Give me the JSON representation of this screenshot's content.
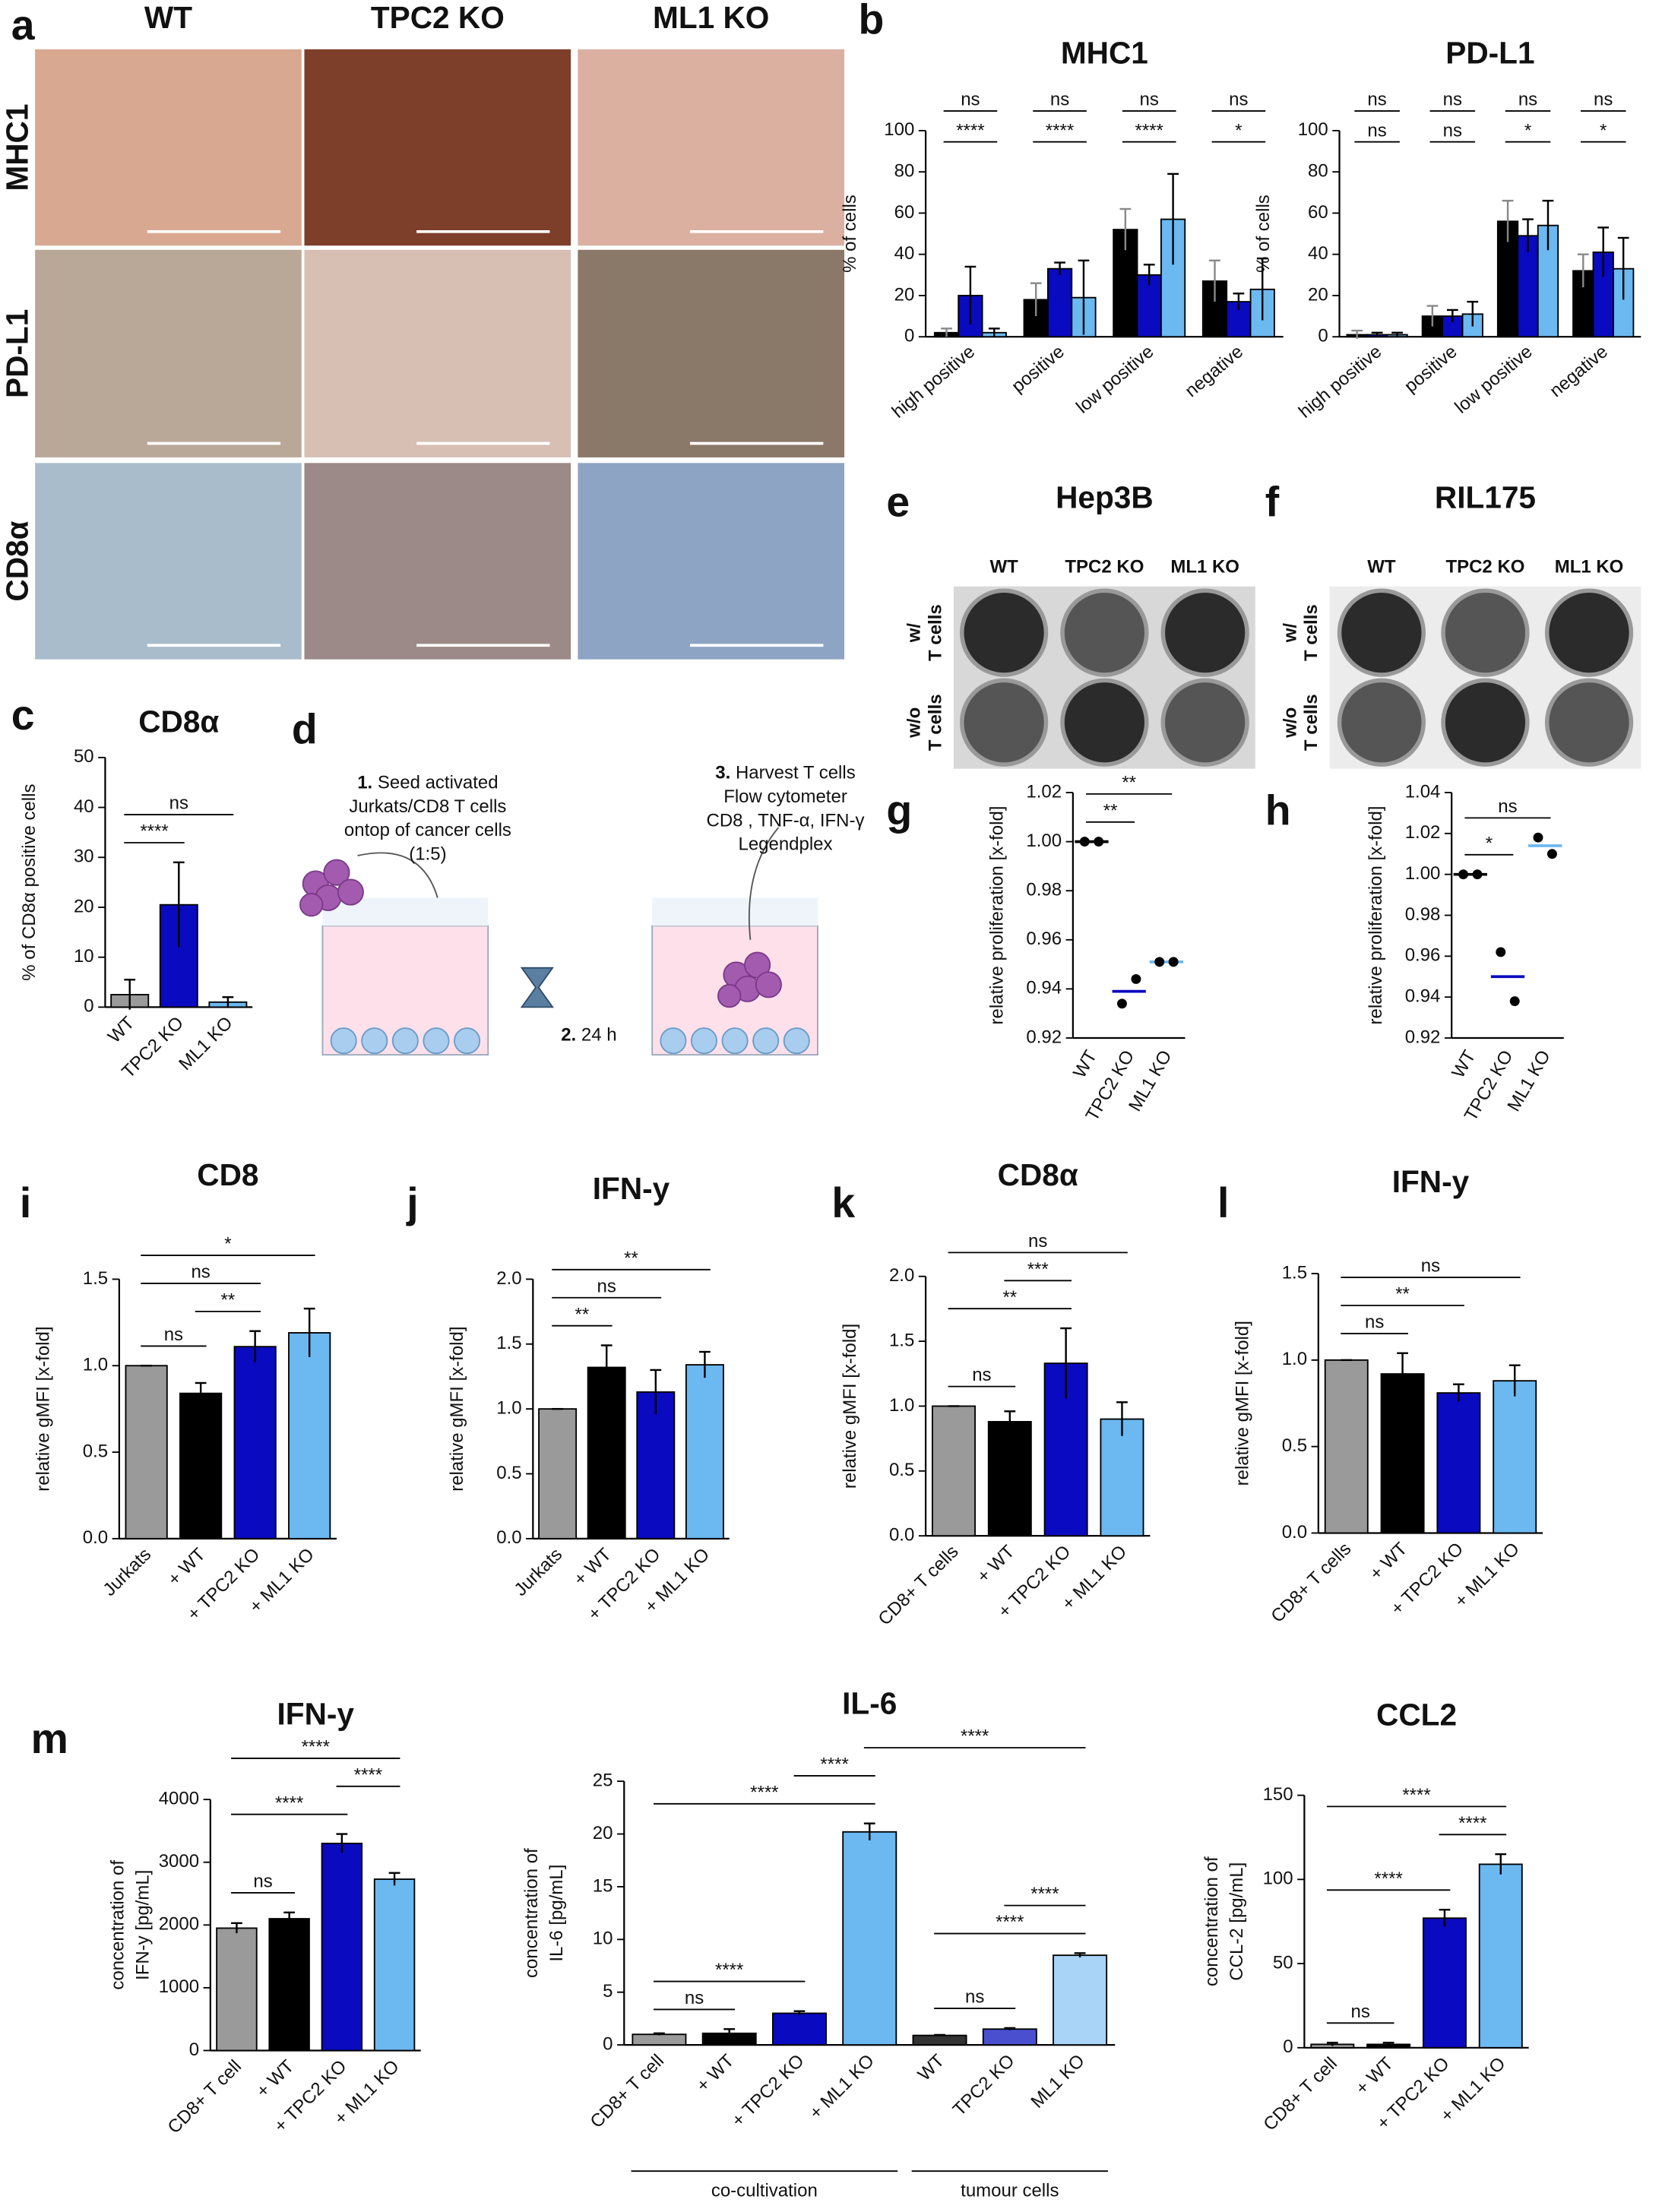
{
  "panel_labels": [
    "a",
    "b",
    "c",
    "d",
    "e",
    "f",
    "g",
    "h",
    "i",
    "j",
    "k",
    "l",
    "m"
  ],
  "histology": {
    "columns": [
      "WT",
      "TPC2 KO",
      "ML1 KO"
    ],
    "rows": [
      "MHC1",
      "PD-L1",
      "CD8α"
    ]
  },
  "schematic": {
    "steps": [
      {
        "number": "1.",
        "text": [
          "Seed activated",
          "Jurkats/CD8 T cells",
          "ontop of cancer cells",
          "(1:5)"
        ]
      },
      {
        "number": "2.",
        "text": [
          "24 h"
        ]
      },
      {
        "number": "3.",
        "text": [
          "Harvest T cells",
          "Flow cytometer",
          "CD8 , TNF-α, IFN-γ",
          "Legendplex"
        ]
      }
    ]
  },
  "plates": [
    {
      "title": "Hep3B",
      "columns": [
        "WT",
        "TPC2 KO",
        "ML1 KO"
      ],
      "rows": [
        [
          "w/",
          "T cells"
        ],
        [
          "w/o",
          "T cells"
        ]
      ]
    },
    {
      "title": "RIL175",
      "columns": [
        "WT",
        "TPC2 KO",
        "ML1 KO"
      ],
      "rows": [
        [
          "w/",
          "T cells"
        ],
        [
          "w/o",
          "T cells"
        ]
      ]
    }
  ],
  "chart_data": [
    {
      "type": "grouped_bar",
      "title": "MHC1",
      "ylabel": "% of cells",
      "categories": [
        "high positive",
        "positive",
        "low positive",
        "negative"
      ],
      "series": [
        {
          "color": "#000000",
          "values": [
            2,
            18,
            52,
            27
          ],
          "errors": [
            2,
            8,
            10,
            10
          ]
        },
        {
          "color": "#0a0ac0",
          "values": [
            20,
            33,
            30,
            17
          ],
          "errors": [
            14,
            3,
            5,
            4
          ]
        },
        {
          "color": "#6cb8f0",
          "values": [
            2,
            19,
            57,
            23
          ],
          "errors": [
            2,
            18,
            22,
            15
          ]
        }
      ],
      "significance": [
        [
          "ns",
          "****"
        ],
        [
          "ns",
          "****"
        ],
        [
          "ns",
          "****"
        ],
        [
          "ns",
          "*"
        ]
      ],
      "ylim": [
        0,
        100
      ],
      "yticks": [
        0,
        20,
        40,
        60,
        80,
        100
      ]
    },
    {
      "type": "grouped_bar",
      "title": "PD-L1",
      "ylabel": "% of cells",
      "categories": [
        "high positive",
        "positive",
        "low positive",
        "negative"
      ],
      "series": [
        {
          "color": "#000000",
          "values": [
            1,
            10,
            56,
            32
          ],
          "errors": [
            2,
            5,
            10,
            8
          ]
        },
        {
          "color": "#0a0ac0",
          "values": [
            1,
            10,
            49,
            41
          ],
          "errors": [
            1,
            3,
            8,
            12
          ]
        },
        {
          "color": "#6cb8f0",
          "values": [
            1,
            11,
            54,
            33
          ],
          "errors": [
            1,
            6,
            12,
            15
          ]
        }
      ],
      "significance": [
        [
          "ns",
          "ns"
        ],
        [
          "ns",
          "ns"
        ],
        [
          "ns",
          "*"
        ],
        [
          "ns",
          "*"
        ]
      ],
      "ylim": [
        0,
        100
      ],
      "yticks": [
        0,
        20,
        40,
        60,
        80,
        100
      ]
    },
    {
      "type": "bar",
      "title": "CD8α",
      "ylabel": "% of CD8α positive cells",
      "categories": [
        "WT",
        "TPC2 KO",
        "ML1 KO"
      ],
      "values": [
        2.5,
        20.5,
        1
      ],
      "errors": [
        3,
        8.5,
        1
      ],
      "colors": [
        "#9a9a9a",
        "#0a0ac0",
        "#6cb8f0"
      ],
      "ylim": [
        0,
        50
      ],
      "yticks": [
        0,
        10,
        20,
        30,
        40,
        50
      ],
      "comparisons": [
        {
          "label": "****",
          "pair": [
            "WT",
            "TPC2 KO"
          ]
        },
        {
          "label": "ns",
          "pair": [
            "WT",
            "ML1 KO"
          ]
        }
      ]
    },
    {
      "type": "dot",
      "ylabel": "relative proliferation [x-fold]",
      "categories": [
        "WT",
        "TPC2 KO",
        "ML1 KO"
      ],
      "values": [
        1,
        0.939,
        0.951
      ],
      "points": [
        [
          1,
          1
        ],
        [
          0.934,
          0.944
        ],
        [
          0.951,
          0.951
        ]
      ],
      "colors": [
        "#000000",
        "#0a0ac0",
        "#6cb8f0"
      ],
      "ylim": [
        0.92,
        1.02
      ],
      "yticks": [
        0.92,
        0.94,
        0.96,
        0.98,
        {
          "value": 1,
          "label": "1.00"
        },
        1.02
      ],
      "comparisons": [
        {
          "label": "**",
          "pair": [
            "WT",
            "TPC2 KO"
          ]
        },
        {
          "label": "**",
          "pair": [
            "WT",
            "ML1 KO"
          ]
        }
      ]
    },
    {
      "type": "dot",
      "ylabel": "relative proliferation [x-fold]",
      "categories": [
        "WT",
        "TPC2 KO",
        "ML1 KO"
      ],
      "values": [
        1,
        0.95,
        1.014
      ],
      "points": [
        [
          1,
          1
        ],
        [
          0.962,
          0.938
        ],
        [
          1.018,
          1.01
        ]
      ],
      "colors": [
        "#000000",
        "#0a0ac0",
        "#6cb8f0"
      ],
      "ylim": [
        0.92,
        1.04
      ],
      "yticks": [
        0.92,
        0.94,
        0.96,
        0.98,
        {
          "value": 1,
          "label": "1.00"
        },
        1.02,
        1.04
      ],
      "comparisons": [
        {
          "label": "*",
          "pair": [
            "WT",
            "TPC2 KO"
          ]
        },
        {
          "label": "ns",
          "pair": [
            "WT",
            "ML1 KO"
          ]
        }
      ]
    },
    {
      "type": "bar",
      "title": "CD8",
      "ylabel": "relative gMFI [x-fold]",
      "categories": [
        "Jurkats",
        "+ WT",
        "+ TPC2 KO",
        "+ ML1 KO"
      ],
      "values": [
        1,
        0.84,
        1.11,
        1.19
      ],
      "errors": [
        0,
        0.06,
        0.09,
        0.14
      ],
      "colors": [
        "#9a9a9a",
        "#000000",
        "#0a0ac0",
        "#6cb8f0"
      ],
      "ylim": [
        0,
        1.5
      ],
      "yticks": [
        {
          "value": 0,
          "label": "0.0"
        },
        0.5,
        {
          "value": 1,
          "label": "1.0"
        },
        1.5
      ],
      "comparisons": [
        {
          "label": "ns",
          "pair": [
            "Jurkats",
            "+ WT"
          ]
        },
        {
          "label": "**",
          "pair": [
            "+ WT",
            "+ TPC2 KO"
          ]
        },
        {
          "label": "ns",
          "pair": [
            "Jurkats",
            "+ TPC2 KO"
          ]
        },
        {
          "label": "*",
          "pair": [
            "Jurkats",
            "+ ML1 KO"
          ]
        }
      ]
    },
    {
      "type": "bar",
      "title": "IFN-y",
      "ylabel": "relative gMFI [x-fold]",
      "categories": [
        "Jurkats",
        "+ WT",
        "+ TPC2 KO",
        "+ ML1 KO"
      ],
      "values": [
        1,
        1.32,
        1.13,
        1.34
      ],
      "errors": [
        0,
        0.17,
        0.17,
        0.1
      ],
      "colors": [
        "#9a9a9a",
        "#000000",
        "#0a0ac0",
        "#6cb8f0"
      ],
      "ylim": [
        0,
        2
      ],
      "yticks": [
        {
          "value": 0,
          "label": "0.0"
        },
        0.5,
        {
          "value": 1,
          "label": "1.0"
        },
        1.5,
        {
          "value": 2,
          "label": "2.0"
        }
      ],
      "comparisons": [
        {
          "label": "**",
          "pair": [
            "Jurkats",
            "+ WT"
          ]
        },
        {
          "label": "ns",
          "pair": [
            "Jurkats",
            "+ TPC2 KO"
          ]
        },
        {
          "label": "**",
          "pair": [
            "Jurkats",
            "+ ML1 KO"
          ]
        }
      ]
    },
    {
      "type": "bar",
      "title": "CD8α",
      "ylabel": "relative gMFI [x-fold]",
      "categories": [
        "CD8+ T cells",
        "+ WT",
        "+ TPC2 KO",
        "+ ML1 KO"
      ],
      "values": [
        1,
        0.88,
        1.33,
        0.9
      ],
      "errors": [
        0,
        0.08,
        0.27,
        0.13
      ],
      "colors": [
        "#9a9a9a",
        "#000000",
        "#0a0ac0",
        "#6cb8f0"
      ],
      "ylim": [
        0,
        2
      ],
      "yticks": [
        {
          "value": 0,
          "label": "0.0"
        },
        0.5,
        {
          "value": 1,
          "label": "1.0"
        },
        1.5,
        {
          "value": 2,
          "label": "2.0"
        }
      ],
      "comparisons": [
        {
          "label": "ns",
          "pair": [
            "CD8+ T cells",
            "+ WT"
          ]
        },
        {
          "label": "**",
          "pair": [
            "CD8+ T cells",
            "+ TPC2 KO"
          ]
        },
        {
          "label": "***",
          "pair": [
            "+ WT",
            "+ TPC2 KO"
          ]
        },
        {
          "label": "ns",
          "pair": [
            "CD8+ T cells",
            "+ ML1 KO"
          ]
        }
      ]
    },
    {
      "type": "bar",
      "title": "IFN-y",
      "ylabel": "relative gMFI [x-fold]",
      "categories": [
        "CD8+ T cells",
        "+ WT",
        "+ TPC2 KO",
        "+ ML1 KO"
      ],
      "values": [
        1,
        0.92,
        0.81,
        0.88
      ],
      "errors": [
        0,
        0.12,
        0.05,
        0.09
      ],
      "colors": [
        "#9a9a9a",
        "#000000",
        "#0a0ac0",
        "#6cb8f0"
      ],
      "ylim": [
        0,
        1.5
      ],
      "yticks": [
        {
          "value": 0,
          "label": "0.0"
        },
        0.5,
        {
          "value": 1,
          "label": "1.0"
        },
        1.5
      ],
      "comparisons": [
        {
          "label": "ns",
          "pair": [
            "CD8+ T cells",
            "+ WT"
          ]
        },
        {
          "label": "**",
          "pair": [
            "CD8+ T cells",
            "+ TPC2 KO"
          ]
        },
        {
          "label": "ns",
          "pair": [
            "CD8+ T cells",
            "+ ML1 KO"
          ]
        }
      ]
    },
    {
      "type": "bar",
      "title": "IFN-y",
      "ylabel": [
        "concentration of",
        "IFN-y [pg/mL]"
      ],
      "categories": [
        "CD8+ T cell",
        "+ WT",
        "+ TPC2 KO",
        "+ ML1 KO"
      ],
      "values": [
        1950,
        2100,
        3300,
        2730
      ],
      "errors": [
        80,
        100,
        150,
        100
      ],
      "colors": [
        "#9a9a9a",
        "#000000",
        "#0a0ac0",
        "#6cb8f0"
      ],
      "ylim": [
        0,
        4000
      ],
      "yticks": [
        0,
        1000,
        2000,
        3000,
        4000
      ],
      "comparisons": [
        {
          "label": "ns",
          "pair": [
            "CD8+ T cell",
            "+ WT"
          ]
        },
        {
          "label": "****",
          "pair": [
            "CD8+ T cell",
            "+ TPC2 KO"
          ]
        },
        {
          "label": "****",
          "pair": [
            "+ TPC2 KO",
            "+ ML1 KO"
          ]
        },
        {
          "label": "****",
          "pair": [
            "CD8+ T cell",
            "+ ML1 KO"
          ]
        }
      ]
    },
    {
      "type": "bar",
      "title": "IL-6",
      "ylabel": [
        "concentration of",
        "IL-6 [pg/mL]"
      ],
      "categories": [
        "CD8+ T cell",
        "+ WT",
        "+ TPC2 KO",
        "+ ML1 KO",
        "WT",
        "TPC2 KO",
        "ML1 KO"
      ],
      "values": [
        1,
        1.1,
        3,
        20.2,
        0.9,
        1.5,
        8.5
      ],
      "errors": [
        0.1,
        0.4,
        0.2,
        0.8,
        0.05,
        0.1,
        0.2
      ],
      "colors": [
        "#9a9a9a",
        "#000000",
        "#0a0ac0",
        "#6cb8f0",
        "#333333",
        "#4a4fd0",
        "#a9d3f7"
      ],
      "ylim": [
        0,
        25
      ],
      "yticks": [
        0,
        5,
        10,
        15,
        20,
        25
      ],
      "groups": [
        {
          "label": "co-cultivation",
          "from": "CD8+ T cell",
          "to": "+ ML1 KO"
        },
        {
          "label": "tumour cells",
          "from": "WT",
          "to": "ML1 KO"
        }
      ],
      "comparisons": [
        {
          "label": "ns",
          "pair": [
            "CD8+ T cell",
            "+ WT"
          ]
        },
        {
          "label": "****",
          "pair": [
            "CD8+ T cell",
            "+ TPC2 KO"
          ]
        },
        {
          "label": "****",
          "pair": [
            "CD8+ T cell",
            "+ ML1 KO"
          ]
        },
        {
          "label": "****",
          "pair": [
            "+ TPC2 KO",
            "+ ML1 KO"
          ]
        },
        {
          "label": "****",
          "pair": [
            "+ ML1 KO",
            "ML1 KO"
          ]
        },
        {
          "label": "ns",
          "pair": [
            "WT",
            "TPC2 KO"
          ]
        },
        {
          "label": "****",
          "pair": [
            "WT",
            "ML1 KO"
          ]
        },
        {
          "label": "****",
          "pair": [
            "TPC2 KO",
            "ML1 KO"
          ]
        }
      ]
    },
    {
      "type": "bar",
      "title": "CCL2",
      "ylabel": [
        "concentration of",
        "CCL-2 [pg/mL]"
      ],
      "categories": [
        "CD8+ T cell",
        "+ WT",
        "+ TPC2 KO",
        "+ ML1 KO"
      ],
      "values": [
        2,
        2,
        77,
        109
      ],
      "errors": [
        1,
        1,
        5,
        6
      ],
      "colors": [
        "#9a9a9a",
        "#000000",
        "#0a0ac0",
        "#6cb8f0"
      ],
      "ylim": [
        0,
        150
      ],
      "yticks": [
        0,
        50,
        100,
        150
      ],
      "comparisons": [
        {
          "label": "ns",
          "pair": [
            "CD8+ T cell",
            "+ WT"
          ]
        },
        {
          "label": "****",
          "pair": [
            "CD8+ T cell",
            "+ TPC2 KO"
          ]
        },
        {
          "label": "****",
          "pair": [
            "+ TPC2 KO",
            "+ ML1 KO"
          ]
        },
        {
          "label": "****",
          "pair": [
            "CD8+ T cell",
            "+ ML1 KO"
          ]
        }
      ]
    }
  ]
}
